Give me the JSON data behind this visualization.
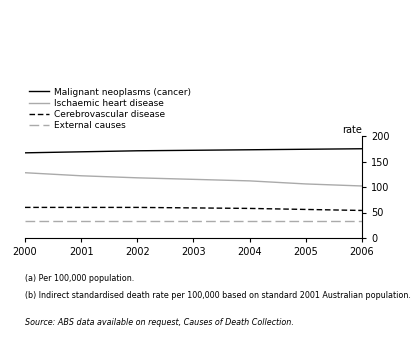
{
  "years": [
    2000,
    2001,
    2002,
    2003,
    2004,
    2005,
    2006
  ],
  "malignant": [
    167,
    169,
    171,
    172,
    173,
    174,
    175
  ],
  "ischaemic": [
    128,
    122,
    118,
    115,
    112,
    106,
    102
  ],
  "cerebrovascular": [
    60,
    60,
    60,
    59,
    58,
    56,
    54
  ],
  "external": [
    34,
    34,
    34,
    34,
    34,
    34,
    34
  ],
  "ylim": [
    0,
    200
  ],
  "yticks": [
    0,
    50,
    100,
    150,
    200
  ],
  "ylabel": "rate",
  "color_black": "#000000",
  "color_gray": "#aaaaaa",
  "legend_labels": [
    "Malignant neoplasms (cancer)",
    "Ischaemic heart disease",
    "Cerebrovascular disease",
    "External causes"
  ],
  "footnote1": "(a) Per 100,000 population.",
  "footnote2": "(b) Indirect standardised death rate per 100,000 based on standard 2001 Australian population.",
  "source": "Source: ABS data available on request, Causes of Death Collection."
}
